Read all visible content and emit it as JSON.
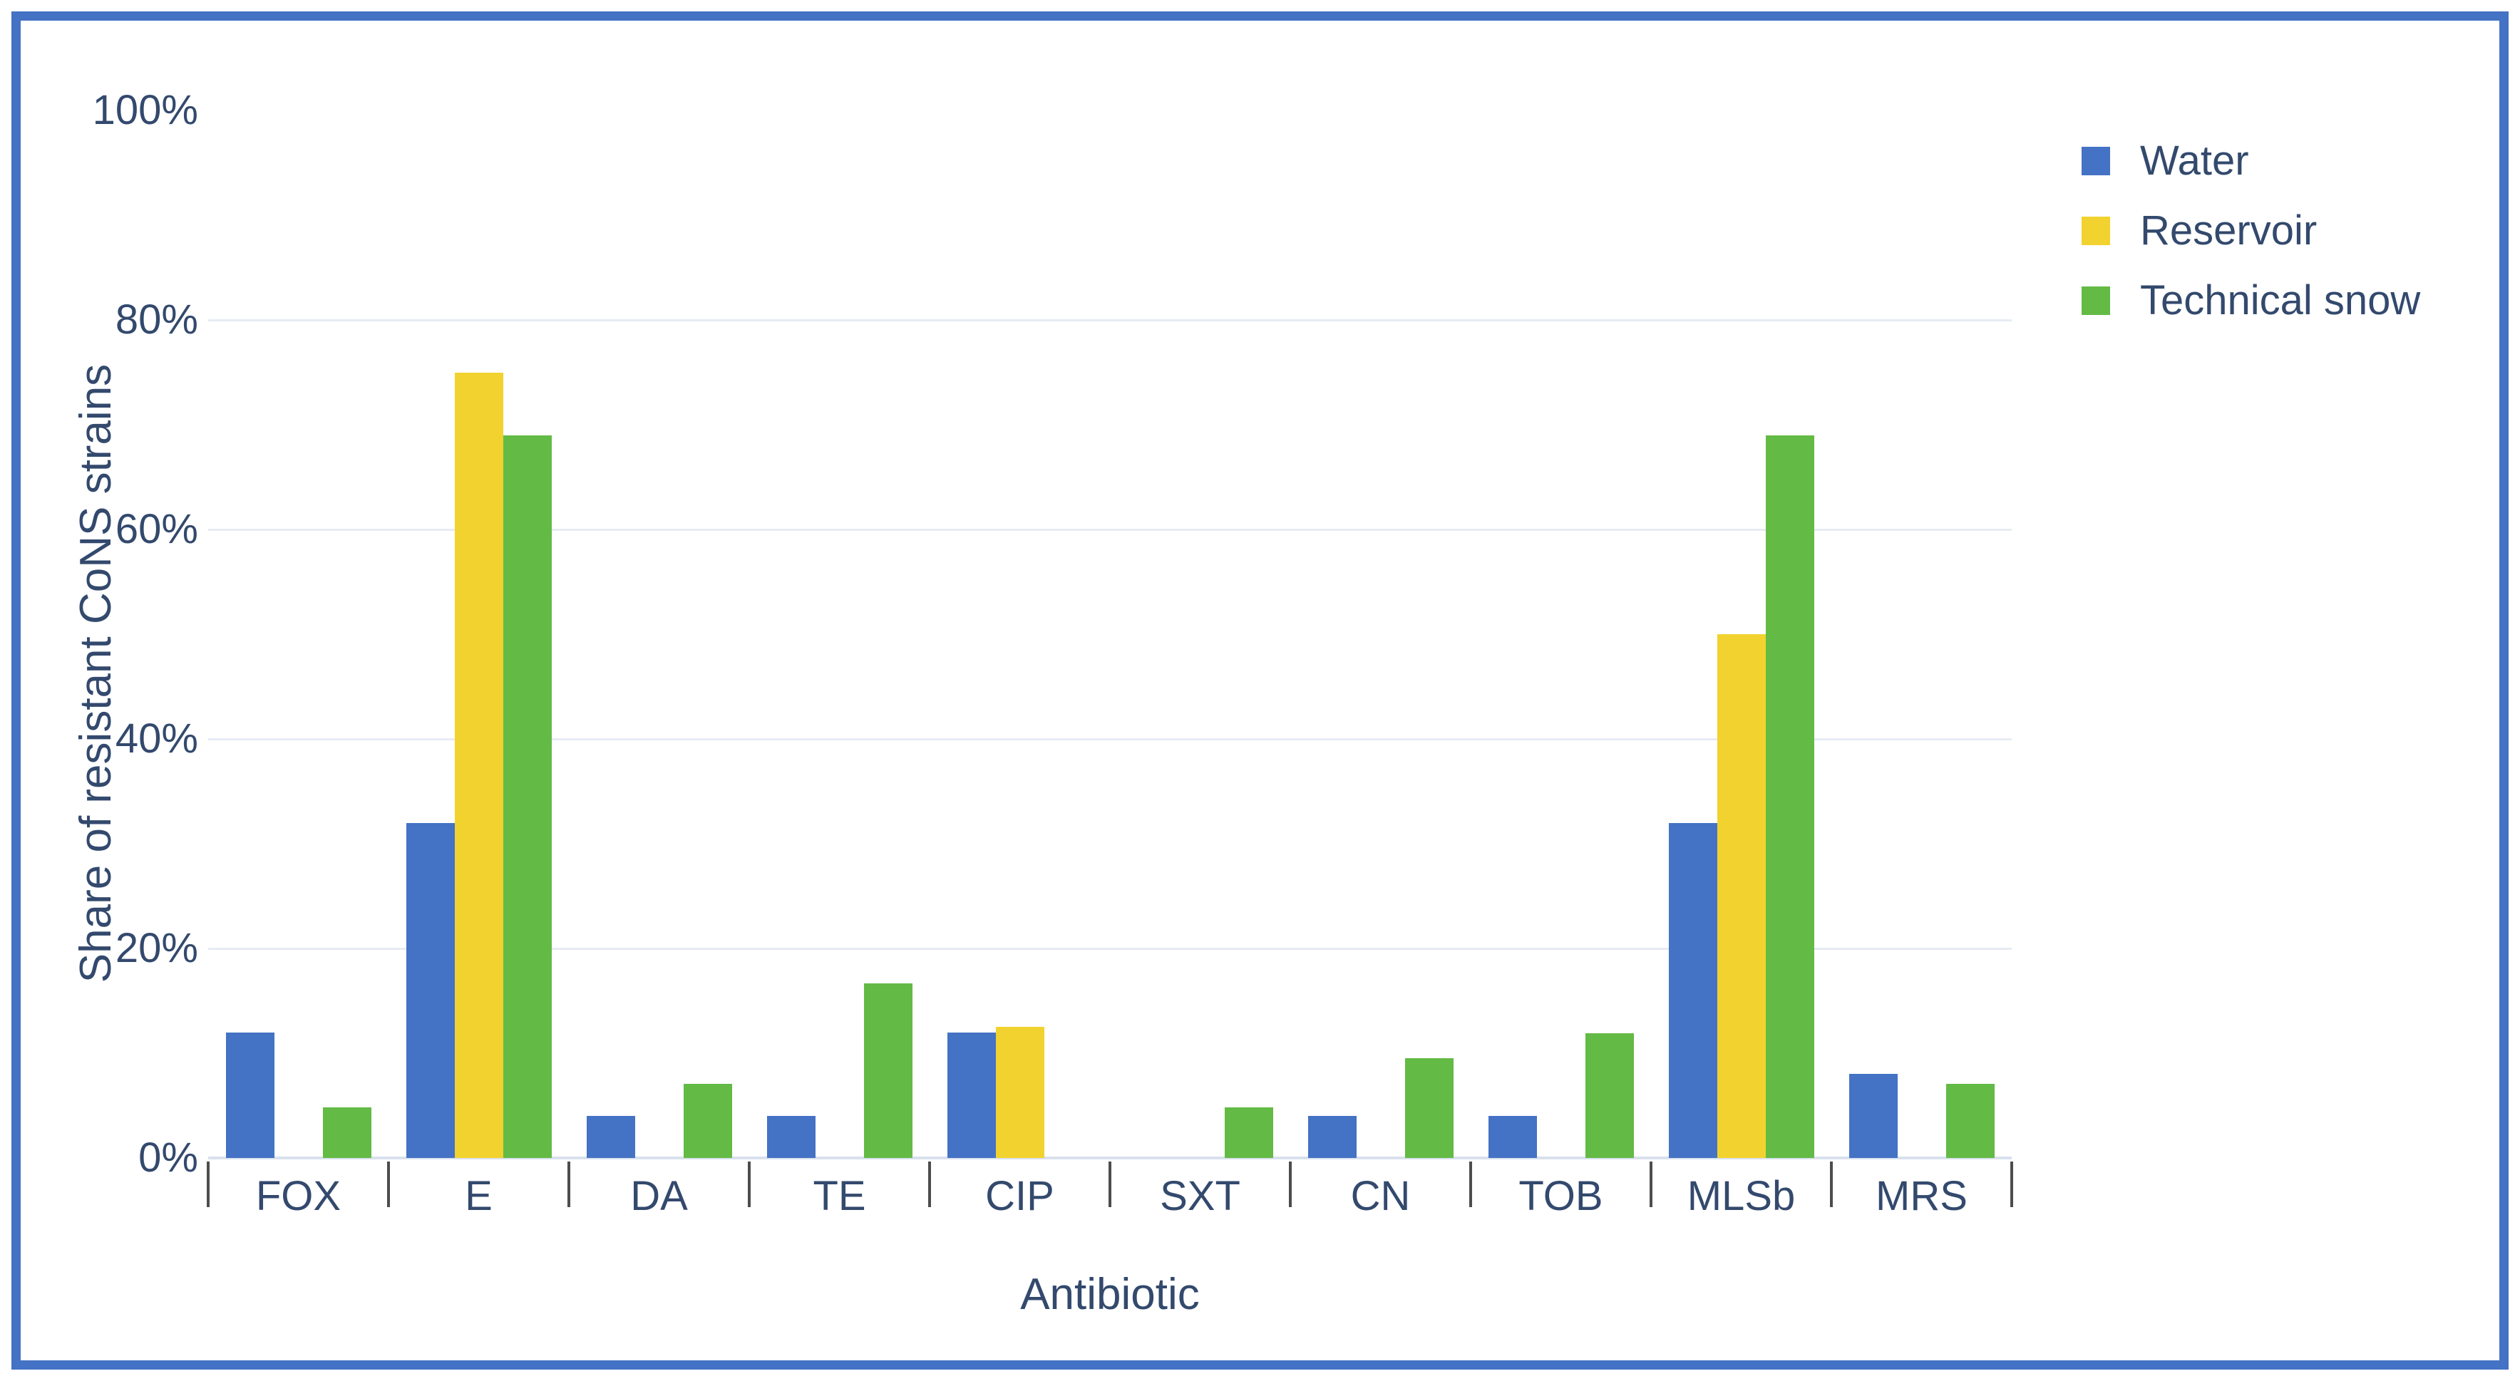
{
  "chart_data": {
    "type": "bar",
    "title": "",
    "xlabel": "Antibiotic",
    "ylabel": "Share of resistant CoNS strains",
    "categories": [
      "FOX",
      "E",
      "DA",
      "TE",
      "CIP",
      "SXT",
      "CN",
      "TOB",
      "MLSb",
      "MRS"
    ],
    "series": [
      {
        "name": "Water",
        "color": "#4472C4",
        "values": [
          12,
          32,
          4,
          4,
          12,
          0,
          4,
          4,
          32,
          8
        ]
      },
      {
        "name": "Reservoir",
        "color": "#F2D22E",
        "values": [
          0,
          75,
          0,
          0,
          12.5,
          0,
          0,
          0,
          50,
          0
        ]
      },
      {
        "name": "Technical snow",
        "color": "#63BA45",
        "values": [
          4.8,
          69,
          7.1,
          16.7,
          0,
          4.8,
          9.5,
          11.9,
          69,
          7.1
        ]
      }
    ],
    "y_ticks": [
      "0%",
      "20%",
      "40%",
      "60%",
      "80%",
      "100%"
    ],
    "ylim": [
      0,
      100
    ],
    "y_tick_step": 20,
    "grid": "horizontal",
    "legend_position": "top-right"
  },
  "frame": {
    "border_color": "#4472C4"
  }
}
